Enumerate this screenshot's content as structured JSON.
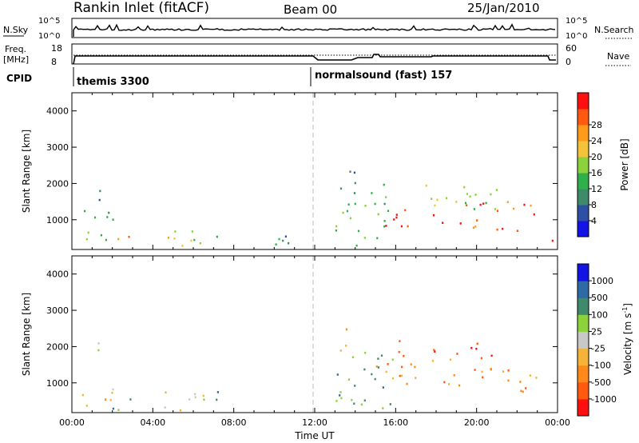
{
  "header": {
    "station": "Rankin Inlet (fitACF)",
    "beam": "Beam 00",
    "date": "25/Jan/2010"
  },
  "summary_panels": {
    "nsky_label": "N.Sky",
    "nsky_ticks": [
      "10^5",
      "10^0"
    ],
    "nsearch_label": "N.Search",
    "nsearch_ticks": [
      "10^5",
      "10^0"
    ],
    "freq_label": "Freq.",
    "freq_unit": "[MHz]",
    "freq_ticks": [
      "18",
      "8"
    ],
    "nave_label": "Nave",
    "nave_ticks": [
      "60",
      "0"
    ],
    "cpid_label": "CPID",
    "cpid_segments": [
      {
        "name": "themis 3300",
        "start_hour": 0
      },
      {
        "name": "normalsound (fast) 157",
        "start_hour": 12
      }
    ]
  },
  "chart_data": [
    {
      "type": "heatmap",
      "panel": "power",
      "ylabel": "Slant Range [km]",
      "y_ticks": [
        "1000",
        "2000",
        "3000",
        "4000"
      ],
      "ylim": [
        180,
        4500
      ],
      "xlim": [
        0,
        24
      ],
      "colorbar_label": "Power [dB]",
      "colorbar_ticks": [
        "4",
        "8",
        "12",
        "16",
        "20",
        "24",
        "28"
      ],
      "colorbar_colors": [
        "#1313e6",
        "#2e4fa6",
        "#3f8a6a",
        "#2fb04a",
        "#8bd23d",
        "#f5c33a",
        "#ff9a1a",
        "#ff5a10",
        "#ff1010"
      ],
      "regions": [
        {
          "t0": 0.3,
          "t1": 2.0,
          "r0": 250,
          "r1": 1400,
          "level": 3
        },
        {
          "t0": 1.0,
          "t1": 1.4,
          "r0": 1400,
          "r1": 2400,
          "level": 2
        },
        {
          "t0": 2.0,
          "t1": 2.8,
          "r0": 250,
          "r1": 900,
          "level": 6
        },
        {
          "t0": 4.3,
          "t1": 6.2,
          "r0": 250,
          "r1": 900,
          "level": 5
        },
        {
          "t0": 6.0,
          "t1": 7.2,
          "r0": 300,
          "r1": 900,
          "level": 4
        },
        {
          "t0": 9.0,
          "t1": 11.5,
          "r0": 250,
          "r1": 700,
          "level": 2
        },
        {
          "t0": 13.2,
          "t1": 14.0,
          "r0": 1900,
          "r1": 2600,
          "level": 2
        },
        {
          "t0": 13.0,
          "t1": 16.0,
          "r0": 300,
          "r1": 2000,
          "level": 3
        },
        {
          "t0": 15.0,
          "t1": 19.0,
          "r0": 800,
          "r1": 1300,
          "level": 8
        },
        {
          "t0": 16.0,
          "t1": 21.0,
          "r0": 1300,
          "r1": 2000,
          "level": 4
        },
        {
          "t0": 19.0,
          "t1": 23.0,
          "r0": 700,
          "r1": 1600,
          "level": 7
        },
        {
          "t0": 23.2,
          "t1": 24.0,
          "r0": 200,
          "r1": 600,
          "level": 8
        }
      ]
    },
    {
      "type": "heatmap",
      "panel": "velocity",
      "xlabel": "Time UT",
      "ylabel": "Slant Range [km]",
      "y_ticks": [
        "1000",
        "2000",
        "3000",
        "4000"
      ],
      "x_ticks": [
        "00:00",
        "04:00",
        "08:00",
        "12:00",
        "16:00",
        "20:00",
        "00:00"
      ],
      "ylim": [
        180,
        4500
      ],
      "xlim": [
        0,
        24
      ],
      "colorbar_label": "Velocity [m s",
      "colorbar_unit_exponent": "-1",
      "colorbar_unit_close": "]",
      "colorbar_ticks": [
        "-1000",
        "-500",
        "-100",
        "-25",
        "25",
        "100",
        "500",
        "1000"
      ],
      "colorbar_colors": [
        "#ff1010",
        "#ff5a10",
        "#ff8a1a",
        "#f5b33a",
        "#c8c8c8",
        "#8bd23d",
        "#3f8a6a",
        "#2e6aa6",
        "#1313e6"
      ],
      "regions": [
        {
          "t0": 0.3,
          "t1": 2.0,
          "r0": 250,
          "r1": 1000,
          "level": 3
        },
        {
          "t0": 1.0,
          "t1": 1.4,
          "r0": 1400,
          "r1": 2400,
          "level": 5
        },
        {
          "t0": 2.0,
          "t1": 3.0,
          "r0": 250,
          "r1": 900,
          "level": 6
        },
        {
          "t0": 4.3,
          "t1": 6.5,
          "r0": 250,
          "r1": 900,
          "level": 3
        },
        {
          "t0": 6.0,
          "t1": 7.2,
          "r0": 300,
          "r1": 900,
          "level": 6
        },
        {
          "t0": 13.2,
          "t1": 14.0,
          "r0": 1900,
          "r1": 2600,
          "level": 2
        },
        {
          "t0": 13.0,
          "t1": 16.0,
          "r0": 300,
          "r1": 2000,
          "level": 6
        },
        {
          "t0": 15.0,
          "t1": 19.0,
          "r0": 800,
          "r1": 1700,
          "level": 2
        },
        {
          "t0": 16.0,
          "t1": 21.0,
          "r0": 1700,
          "r1": 2200,
          "level": 1
        },
        {
          "t0": 19.0,
          "t1": 23.0,
          "r0": 700,
          "r1": 1500,
          "level": 2
        }
      ]
    }
  ]
}
